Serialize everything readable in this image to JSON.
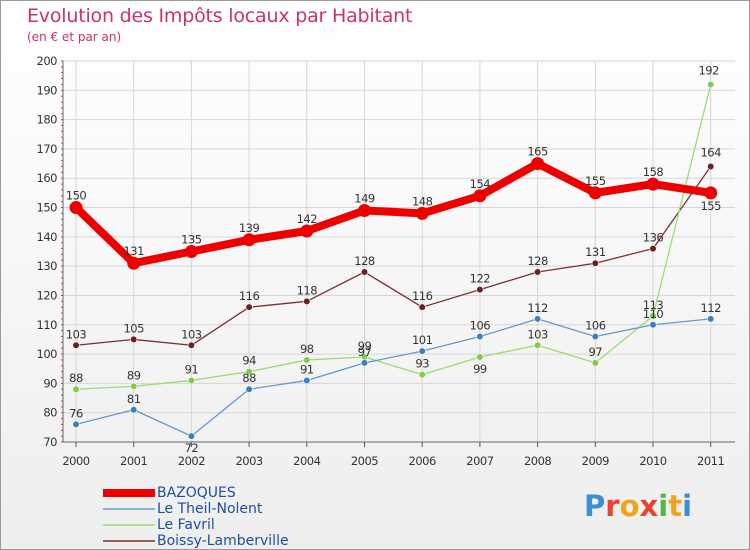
{
  "header": {
    "title": "Evolution des Impôts locaux par Habitant",
    "subtitle": "(en € et par an)"
  },
  "brand": {
    "letters": [
      "P",
      "r",
      "o",
      "x",
      "i",
      "t",
      "i"
    ],
    "colors": [
      "#3a8fd8",
      "#e8432e",
      "#f2a31c",
      "#e8432e",
      "#52b84a",
      "#f2a31c",
      "#3a8fd8"
    ]
  },
  "chart_data": {
    "type": "line",
    "title": "Evolution des Impôts locaux par Habitant",
    "subtitle": "(en € et par an)",
    "xlabel": "",
    "ylabel": "",
    "categories": [
      "2000",
      "2001",
      "2002",
      "2003",
      "2004",
      "2005",
      "2006",
      "2007",
      "2008",
      "2009",
      "2010",
      "2011"
    ],
    "ylim": [
      70,
      200
    ],
    "yticks": [
      70,
      80,
      90,
      100,
      110,
      120,
      130,
      140,
      150,
      160,
      170,
      180,
      190,
      200
    ],
    "grid": true,
    "legend_position": "bottom-left",
    "series": [
      {
        "name": "BAZOQUES",
        "color": "#ee0000",
        "values": [
          150,
          131,
          135,
          139,
          142,
          149,
          148,
          154,
          165,
          155,
          158,
          155
        ],
        "labels": [
          "150",
          "131",
          "135",
          "139",
          "142",
          "149",
          "148",
          "154",
          "165",
          "155",
          "158",
          "155"
        ]
      },
      {
        "name": "Le Theil-Nolent",
        "color": "#6699cc",
        "marker": "#3a7fc2",
        "values": [
          76,
          81,
          72,
          88,
          91,
          97,
          101,
          106,
          112,
          106,
          110,
          112
        ],
        "labels": [
          "76",
          "81",
          "72",
          "88",
          "91",
          "97",
          "101",
          "106",
          "112",
          "106",
          "110",
          "112"
        ]
      },
      {
        "name": "Le Favril",
        "color": "#99dd77",
        "marker": "#7dcc4a",
        "values": [
          88,
          89,
          91,
          94,
          98,
          99,
          93,
          99,
          103,
          97,
          113,
          192
        ],
        "labels": [
          "88",
          "89",
          "91",
          "94",
          "98",
          "99",
          "93",
          "99",
          "103",
          "97",
          "113",
          "192"
        ]
      },
      {
        "name": "Boissy-Lamberville",
        "color": "#7a3030",
        "marker": "#6b1f1f",
        "values": [
          103,
          105,
          103,
          116,
          118,
          128,
          116,
          122,
          128,
          131,
          136,
          164
        ],
        "labels": [
          "103",
          "105",
          "103",
          "116",
          "118",
          "128",
          "116",
          "122",
          "128",
          "131",
          "136",
          "164"
        ]
      }
    ]
  }
}
